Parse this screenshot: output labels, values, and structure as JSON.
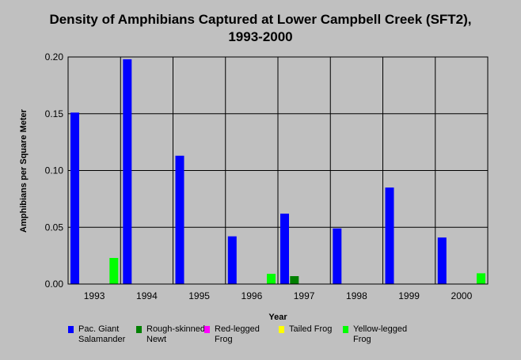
{
  "chart_data": {
    "type": "bar",
    "title_lines": [
      "Density of Amphibians Captured at Lower Campbell Creek (SFT2),",
      "1993-2000"
    ],
    "xlabel": "Year",
    "ylabel": "Amphibians per Square Meter",
    "categories": [
      "1993",
      "1994",
      "1995",
      "1996",
      "1997",
      "1998",
      "1999",
      "2000"
    ],
    "ylim": [
      0,
      0.2
    ],
    "yticks": [
      "0.00",
      "0.05",
      "0.10",
      "0.15",
      "0.20"
    ],
    "grid": true,
    "legend_position": "bottom",
    "series": [
      {
        "name": "Pac. Giant Salamander",
        "color": "#0000ff",
        "values": [
          0.151,
          0.198,
          0.113,
          0.042,
          0.062,
          0.049,
          0.085,
          0.041
        ]
      },
      {
        "name": "Rough-skinned Newt",
        "color": "#008000",
        "values": [
          0,
          0,
          0,
          0,
          0.007,
          0,
          0,
          0
        ]
      },
      {
        "name": "Red-legged Frog",
        "color": "#ff00ff",
        "values": [
          0,
          0,
          0,
          0,
          0,
          0,
          0,
          0
        ]
      },
      {
        "name": "Tailed Frog",
        "color": "#ffff00",
        "values": [
          0,
          0,
          0,
          0,
          0,
          0,
          0,
          0
        ]
      },
      {
        "name": "Yellow-legged Frog",
        "color": "#00ff00",
        "values": [
          0.023,
          0,
          0,
          0.009,
          0,
          0,
          0,
          0.0095
        ]
      }
    ],
    "legend_labels": [
      [
        "Pac. Giant",
        "Salamander"
      ],
      [
        "Rough-skinned",
        "Newt"
      ],
      [
        "Red-legged",
        "Frog"
      ],
      [
        "Tailed Frog"
      ],
      [
        "Yellow-legged",
        "Frog"
      ]
    ]
  }
}
